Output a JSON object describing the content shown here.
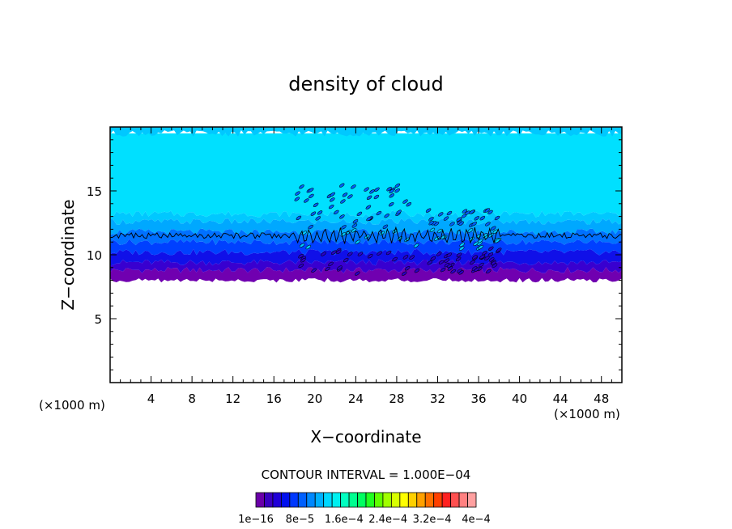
{
  "chart_data": {
    "type": "heatmap",
    "title": "density of cloud",
    "xlabel": "X−coordinate",
    "ylabel": "Z−coordinate",
    "x_unit_left": "(×1000 m)",
    "x_unit_right": "(×1000 m)",
    "xlim": [
      0,
      50
    ],
    "ylim": [
      0,
      20
    ],
    "x_ticks": [
      4,
      8,
      12,
      16,
      20,
      24,
      28,
      32,
      36,
      40,
      44,
      48
    ],
    "y_ticks": [
      5,
      10,
      15
    ],
    "contour_interval_label": "CONTOUR INTERVAL = 1.000E−04",
    "colorbar": {
      "labels": [
        "1e−16",
        "8e−5",
        "1.6e−4",
        "2.4e−4",
        "3.2e−4",
        "4e−4"
      ],
      "colors": [
        "#6a00a8",
        "#3a00c0",
        "#2000d8",
        "#0010ee",
        "#0038ff",
        "#0060ff",
        "#0088ff",
        "#00b0ff",
        "#00d8ff",
        "#00f0f0",
        "#00ffc0",
        "#00ff90",
        "#00ff60",
        "#20ff20",
        "#60ff00",
        "#a0ff00",
        "#d8ff00",
        "#ffff00",
        "#ffd000",
        "#ffa000",
        "#ff7000",
        "#ff4000",
        "#ff2020",
        "#ff5050",
        "#ff8080",
        "#ffa0a0"
      ]
    },
    "field": {
      "cloud_base": 8,
      "contour_level_z": 11.5,
      "background_color": "#00e0ff",
      "bands": [
        {
          "z0": 8.0,
          "z1": 8.8,
          "color": "#7000b0"
        },
        {
          "z0": 8.8,
          "z1": 9.4,
          "color": "#3800d0"
        },
        {
          "z0": 9.4,
          "z1": 10.2,
          "color": "#1010e8"
        },
        {
          "z0": 10.2,
          "z1": 11.0,
          "color": "#0040ff"
        },
        {
          "z0": 11.0,
          "z1": 11.8,
          "color": "#0070ff"
        },
        {
          "z0": 11.8,
          "z1": 12.6,
          "color": "#00a8ff"
        },
        {
          "z0": 12.6,
          "z1": 13.2,
          "color": "#00c8ff"
        },
        {
          "z0": 13.2,
          "z1": 19.5,
          "color": "#00e0ff"
        },
        {
          "z0": 19.5,
          "z1": 20.0,
          "color": "#00c8ff"
        }
      ],
      "wave_packets": [
        {
          "x0": 18,
          "x1": 30,
          "z0": 8.5,
          "z1": 15.5
        },
        {
          "x0": 31,
          "x1": 38,
          "z0": 8.5,
          "z1": 13.5
        }
      ]
    }
  }
}
